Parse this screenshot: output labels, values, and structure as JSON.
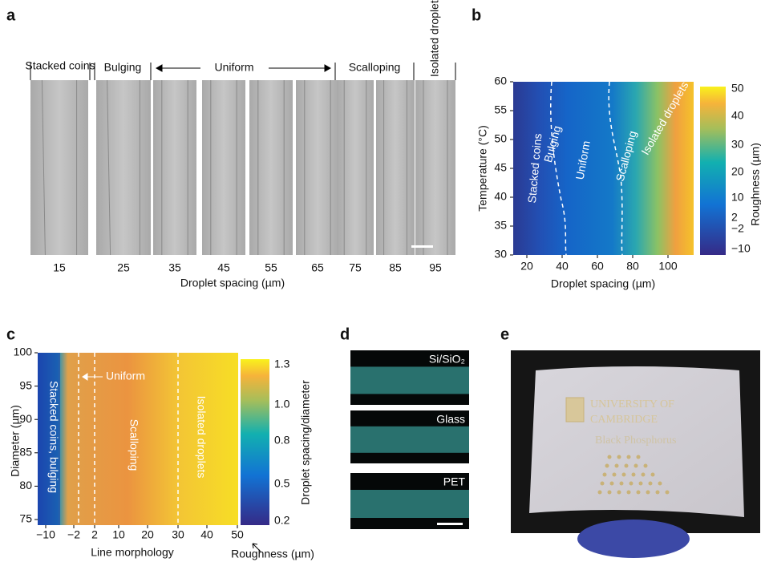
{
  "panels": {
    "a": {
      "label": "a",
      "regimes": [
        "Stacked coins",
        "Bulging",
        "Uniform",
        "Scalloping",
        "Isolated droplets"
      ],
      "spacings": [
        "15",
        "25",
        "35",
        "45",
        "55",
        "65",
        "75",
        "85",
        "95"
      ],
      "xlabel": "Droplet spacing (µm)"
    },
    "b": {
      "label": "b",
      "ylabel": "Temperature (°C)",
      "xlabel": "Droplet spacing (µm)",
      "yticks": [
        "30",
        "35",
        "40",
        "45",
        "50",
        "55",
        "60"
      ],
      "xticks": [
        "20",
        "40",
        "60",
        "80",
        "100"
      ],
      "colorbar_label": "Roughness (µm)",
      "colorbar_ticks": [
        "50",
        "40",
        "30",
        "20",
        "10",
        "2",
        "−2",
        "−10"
      ],
      "regions": [
        "Stacked coins",
        "Bulging",
        "Uniform",
        "Scalloping",
        "Isolated droplets"
      ]
    },
    "c": {
      "label": "c",
      "ylabel": "Diameter (µm)",
      "xlabel": "Line morphology",
      "xlabel2": "Roughness (µm)",
      "yticks": [
        "75",
        "80",
        "85",
        "90",
        "95",
        "100"
      ],
      "xticks": [
        "−10",
        "−2",
        "2",
        "10",
        "20",
        "30",
        "40",
        "50"
      ],
      "colorbar_label": "Droplet spacing/diameter",
      "colorbar_ticks": [
        "1.3",
        "1.0",
        "0.8",
        "0.5",
        "0.2"
      ],
      "regions": [
        "Stacked coins, bulging",
        "Uniform",
        "Scalloping",
        "Isolated droplets"
      ]
    },
    "d": {
      "label": "d",
      "substrates": [
        "Si/SiO₂",
        "Glass",
        "PET"
      ]
    },
    "e": {
      "label": "e",
      "photo_text": [
        "UNIVERSITY OF",
        "CAMBRIDGE",
        "Black Phosphorus"
      ]
    }
  }
}
